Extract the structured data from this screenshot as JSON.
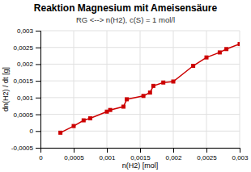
{
  "chart_data": {
    "type": "line",
    "title": "Reaktion Magnesium mit Ameisensäure",
    "subtitle": "RG <--> n(H2), c(S) = 1 mol/l",
    "x_label": "n(H2) [mol]",
    "y_label": "dn(H2) / dt [g]",
    "x": [
      0.0003,
      0.0005,
      0.00065,
      0.00075,
      0.001,
      0.00105,
      0.00125,
      0.0013,
      0.00155,
      0.00165,
      0.0017,
      0.00185,
      0.002,
      0.0023,
      0.0025,
      0.0027,
      0.0028,
      0.003
    ],
    "values": [
      -5e-05,
      0.00015,
      0.00032,
      0.00038,
      0.00058,
      0.00063,
      0.00073,
      0.00095,
      0.00105,
      0.00115,
      0.00135,
      0.00145,
      0.00148,
      0.00195,
      0.0022,
      0.00235,
      0.00245,
      0.0026
    ],
    "color": "#cc0000",
    "marker": "square",
    "grid": true,
    "xlim": [
      0,
      0.003
    ],
    "ylim": [
      -0.0005,
      0.003
    ],
    "xticks": [
      0,
      {
        "value": 0.0005,
        "label": "0,0005"
      },
      {
        "value": 0.001,
        "label": "0,001"
      },
      {
        "value": 0.0015,
        "label": "0,0015"
      },
      {
        "value": 0.002,
        "label": "0,002"
      },
      {
        "value": 0.0025,
        "label": "0,0025"
      },
      {
        "value": 0.003,
        "label": "0,003"
      }
    ],
    "yticks": [
      {
        "value": -0.0005,
        "label": "-0,0005"
      },
      0,
      {
        "value": 0.0005,
        "label": "0,0005"
      },
      {
        "value": 0.001,
        "label": "0,001"
      },
      {
        "value": 0.0015,
        "label": "0,0015"
      },
      {
        "value": 0.002,
        "label": "0,002"
      },
      {
        "value": 0.0025,
        "label": "0,0025"
      },
      {
        "value": 0.003,
        "label": "0,003"
      }
    ]
  }
}
